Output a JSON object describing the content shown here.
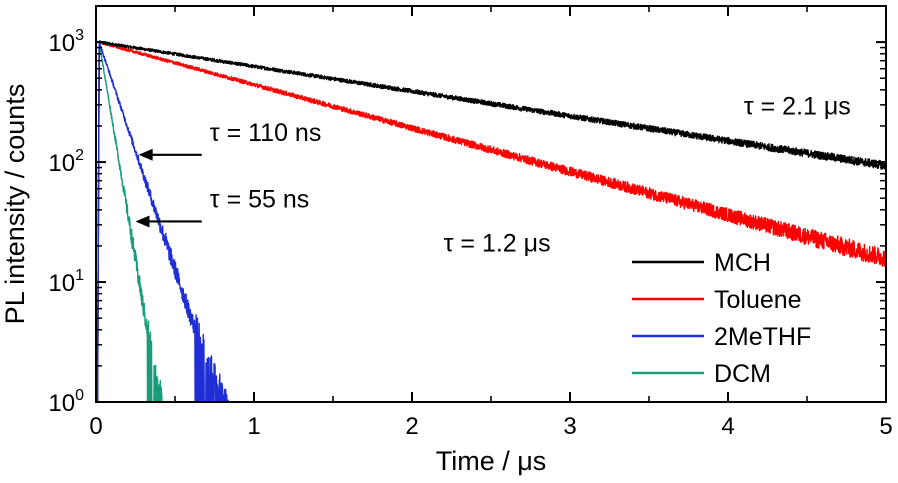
{
  "chart_data": {
    "type": "line",
    "title": "",
    "xlabel": "Time / μs",
    "ylabel": "PL intensity / counts",
    "xlim": [
      0,
      5
    ],
    "ylim": [
      1,
      2000
    ],
    "yscale": "log",
    "x_ticks": [
      0,
      1,
      2,
      3,
      4,
      5
    ],
    "x_tick_labels": [
      "0",
      "1",
      "2",
      "3",
      "4",
      "5"
    ],
    "y_ticks": [
      1,
      10,
      100,
      1000
    ],
    "y_tick_labels": [
      {
        "base": "10",
        "exp": "0"
      },
      {
        "base": "10",
        "exp": "1"
      },
      {
        "base": "10",
        "exp": "2"
      },
      {
        "base": "10",
        "exp": "3"
      }
    ],
    "grid": false,
    "legend_position": "bottom-right",
    "series": [
      {
        "name": "MCH",
        "color": "#000000",
        "start": 0.02,
        "end": 5.0,
        "peak": 1000,
        "lifetime_us": 2.1,
        "noise_floor": 0
      },
      {
        "name": "Toluene",
        "color": "#ff0000",
        "start": 0.02,
        "end": 5.0,
        "peak": 1000,
        "lifetime_us": 1.2,
        "noise_floor": 0
      },
      {
        "name": "2MeTHF",
        "color": "#1f2fd6",
        "start": 0.02,
        "end": 1.68,
        "peak": 1000,
        "lifetime_us": 0.11,
        "noise_floor": 1.1
      },
      {
        "name": "DCM",
        "color": "#1a9c7a",
        "start": 0.02,
        "end": 0.82,
        "peak": 1000,
        "lifetime_us": 0.055,
        "noise_floor": 1.0
      }
    ],
    "annotations": [
      {
        "text": "τ = 2.1 μs",
        "x": 4.1,
        "y": 250
      },
      {
        "text": "τ = 1.2 μs",
        "x": 2.2,
        "y": 18
      },
      {
        "text": "τ = 110 ns",
        "x": 0.72,
        "y": 150,
        "arrow_to": {
          "x": 0.27,
          "y": 115
        }
      },
      {
        "text": "τ = 55 ns",
        "x": 0.72,
        "y": 42,
        "arrow_to": {
          "x": 0.25,
          "y": 32
        }
      }
    ]
  }
}
